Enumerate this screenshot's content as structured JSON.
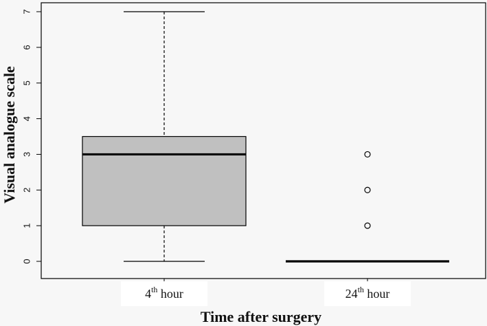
{
  "chart_data": {
    "type": "boxplot",
    "xlabel": "Time after surgery",
    "ylabel": "Visual analogue scale",
    "ylim": [
      0,
      7
    ],
    "yticks": [
      0,
      1,
      2,
      3,
      4,
      5,
      6,
      7
    ],
    "grid": false,
    "legend": "none",
    "categories": [
      {
        "base": "4",
        "sup": "th",
        "suffix": " hour"
      },
      {
        "base": "24",
        "sup": "th",
        "suffix": " hour"
      }
    ],
    "boxes": [
      {
        "whisker_low": 0,
        "q1": 1,
        "median": 3,
        "q3": 3.5,
        "whisker_high": 7,
        "outliers": []
      },
      {
        "whisker_low": 0,
        "q1": 0,
        "median": 0,
        "q3": 0,
        "whisker_high": 0,
        "outliers": [
          1,
          2,
          3
        ]
      }
    ],
    "colors": {
      "box_fill": "#c0c0c0",
      "stroke": "#000000",
      "plot_bg": "#f7f7f7",
      "label_bg": "#ffffff"
    }
  }
}
